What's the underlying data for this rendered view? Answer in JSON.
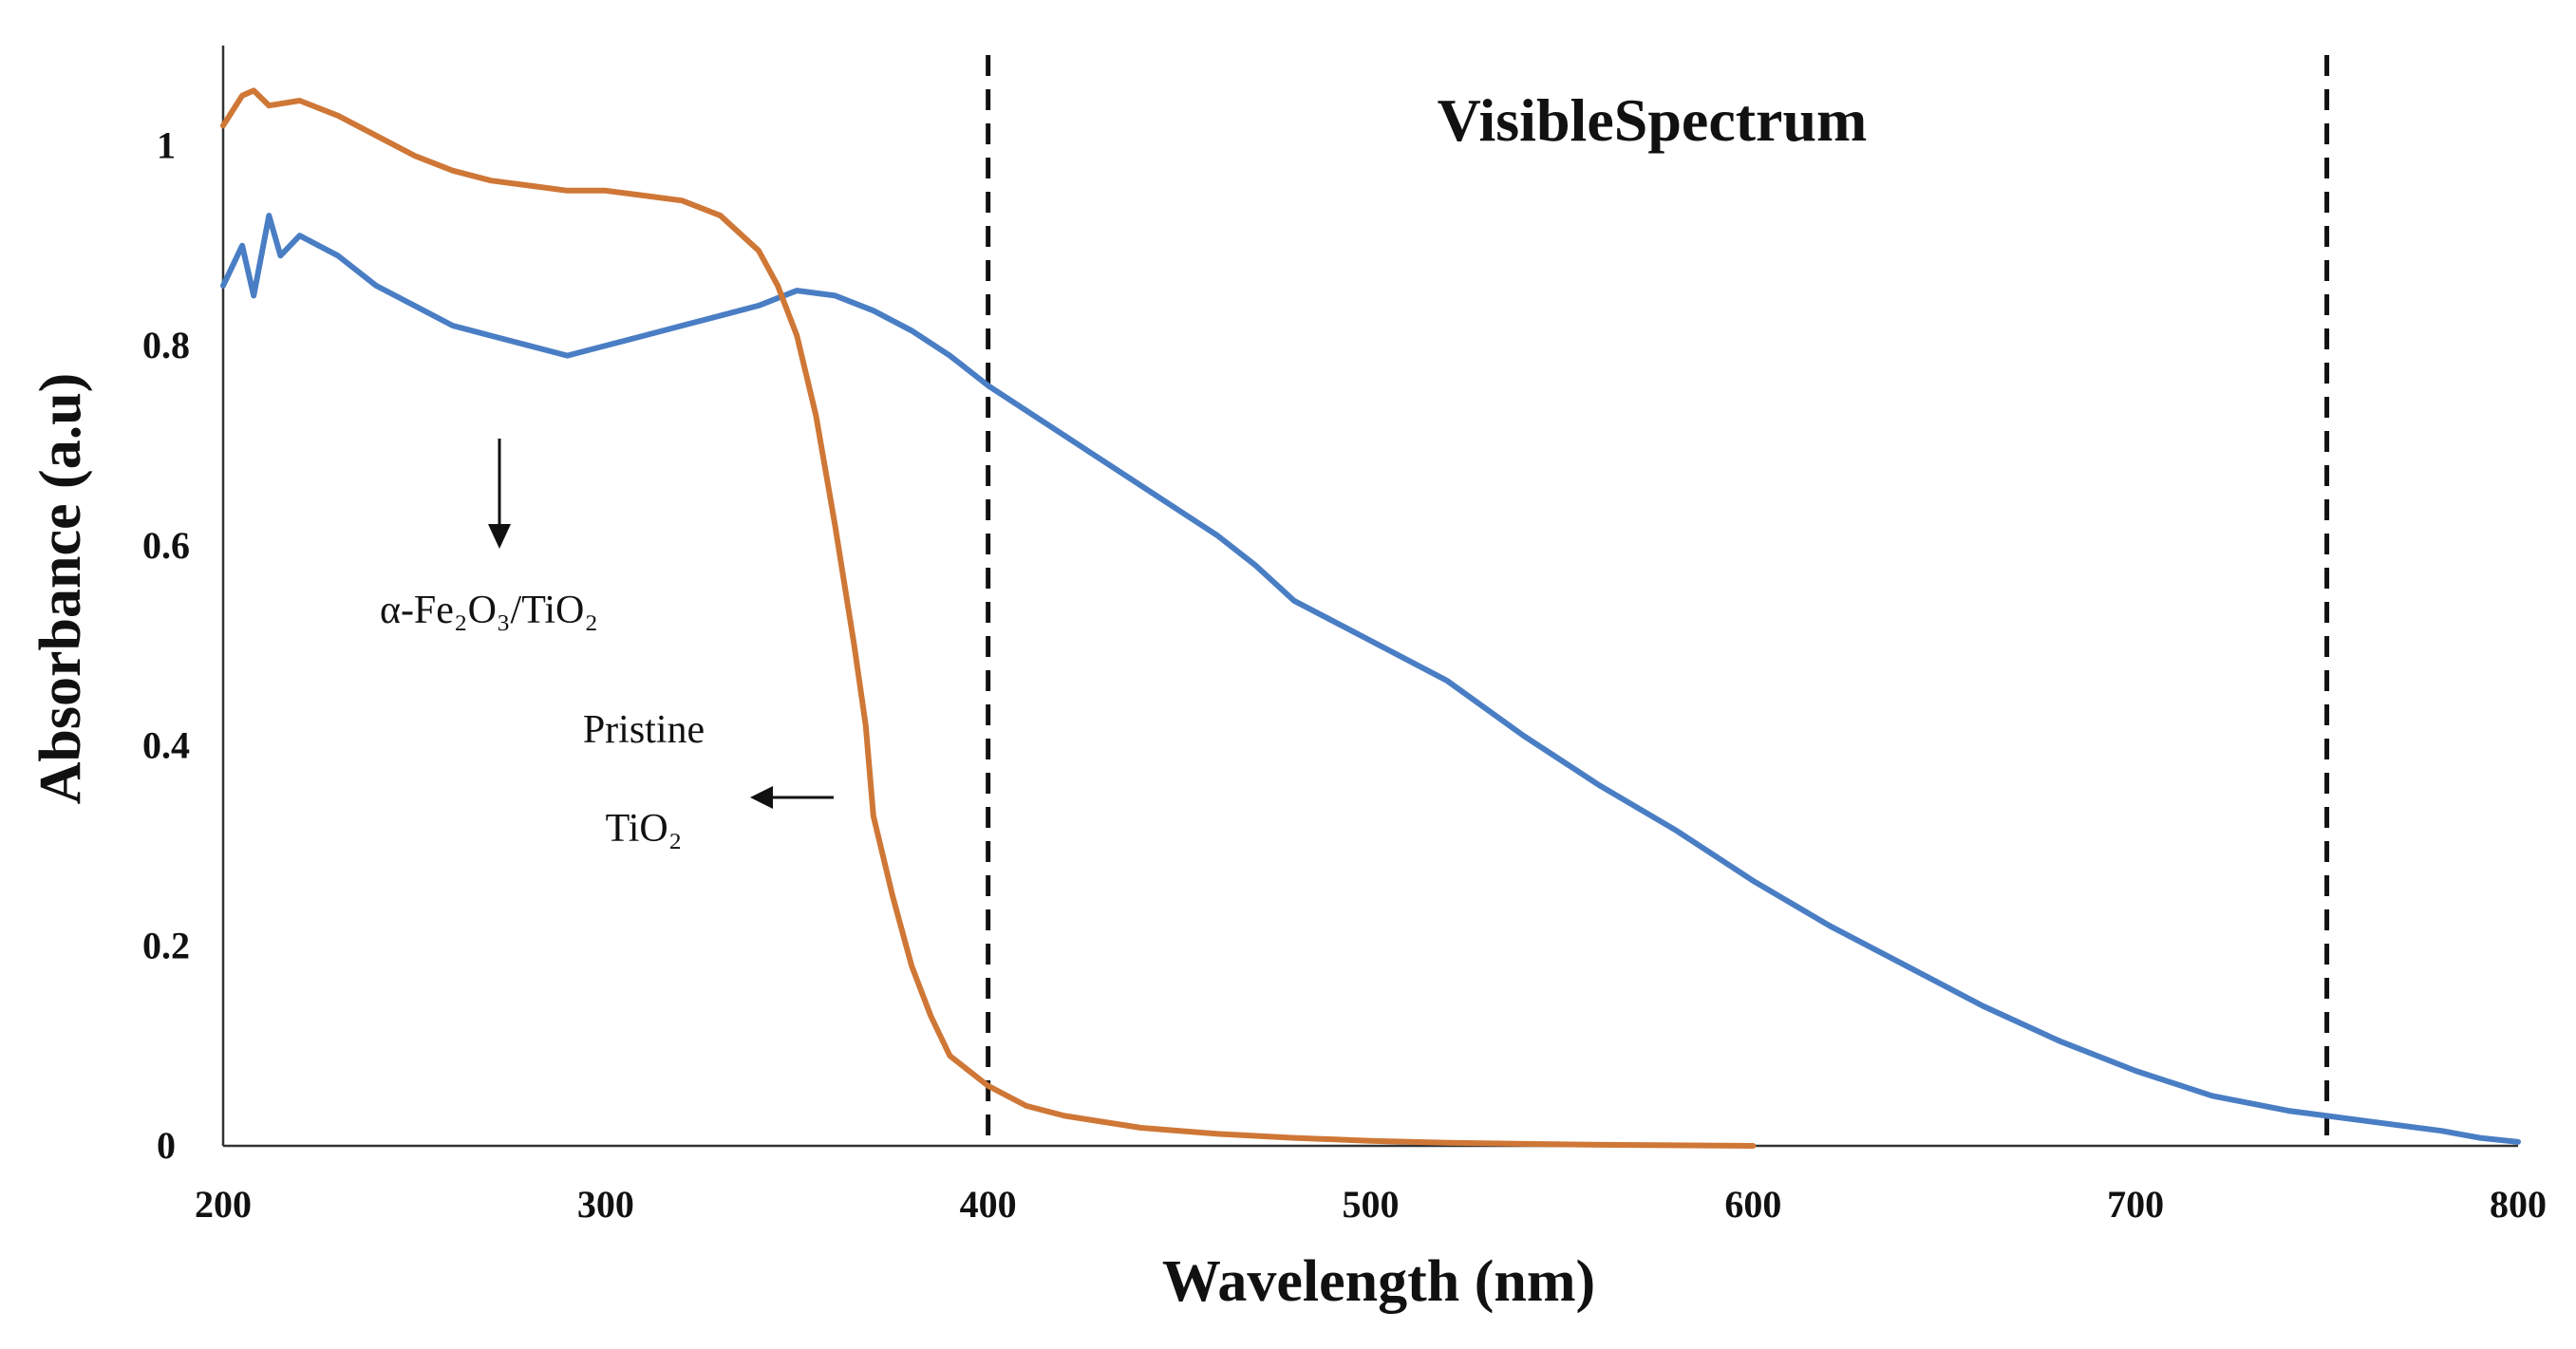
{
  "chart_data": {
    "type": "line",
    "xlabel": "Wavelength (nm)",
    "ylabel": "Absorbance (a.u)",
    "xlim": [
      200,
      800
    ],
    "ylim": [
      0,
      1.1
    ],
    "x_ticks": [
      "200",
      "300",
      "400",
      "500",
      "600",
      "700",
      "800"
    ],
    "y_ticks": [
      "0",
      "0.2",
      "0.4",
      "0.6",
      "0.8",
      "1"
    ],
    "grid": false,
    "annotations": {
      "visible_band_label": "VisibleSpectrum",
      "fe_label": "α-Fe₂O₃/TiO₂",
      "tio2_label_line1": "Pristine",
      "tio2_label_line2": "TiO₂"
    },
    "markers_x": [
      400,
      750
    ],
    "series": [
      {
        "id": "fe2o3_tio2",
        "color": "#4a7ec4",
        "points": [
          [
            200,
            0.86
          ],
          [
            205,
            0.9
          ],
          [
            208,
            0.85
          ],
          [
            212,
            0.93
          ],
          [
            215,
            0.89
          ],
          [
            220,
            0.91
          ],
          [
            230,
            0.89
          ],
          [
            240,
            0.86
          ],
          [
            250,
            0.84
          ],
          [
            260,
            0.82
          ],
          [
            270,
            0.81
          ],
          [
            280,
            0.8
          ],
          [
            290,
            0.79
          ],
          [
            300,
            0.8
          ],
          [
            310,
            0.81
          ],
          [
            320,
            0.82
          ],
          [
            330,
            0.83
          ],
          [
            340,
            0.84
          ],
          [
            350,
            0.855
          ],
          [
            360,
            0.85
          ],
          [
            370,
            0.835
          ],
          [
            380,
            0.815
          ],
          [
            390,
            0.79
          ],
          [
            400,
            0.76
          ],
          [
            420,
            0.71
          ],
          [
            440,
            0.66
          ],
          [
            460,
            0.61
          ],
          [
            470,
            0.58
          ],
          [
            480,
            0.545
          ],
          [
            490,
            0.525
          ],
          [
            500,
            0.505
          ],
          [
            520,
            0.465
          ],
          [
            540,
            0.41
          ],
          [
            560,
            0.36
          ],
          [
            580,
            0.315
          ],
          [
            600,
            0.265
          ],
          [
            620,
            0.22
          ],
          [
            640,
            0.18
          ],
          [
            660,
            0.14
          ],
          [
            680,
            0.105
          ],
          [
            700,
            0.075
          ],
          [
            720,
            0.05
          ],
          [
            740,
            0.035
          ],
          [
            760,
            0.025
          ],
          [
            780,
            0.015
          ],
          [
            790,
            0.008
          ],
          [
            800,
            0.004
          ]
        ]
      },
      {
        "id": "pristine_tio2",
        "color": "#cf7736",
        "points": [
          [
            200,
            1.02
          ],
          [
            205,
            1.05
          ],
          [
            208,
            1.055
          ],
          [
            212,
            1.04
          ],
          [
            220,
            1.045
          ],
          [
            230,
            1.03
          ],
          [
            240,
            1.01
          ],
          [
            250,
            0.99
          ],
          [
            260,
            0.975
          ],
          [
            270,
            0.965
          ],
          [
            280,
            0.96
          ],
          [
            290,
            0.955
          ],
          [
            300,
            0.955
          ],
          [
            310,
            0.95
          ],
          [
            320,
            0.945
          ],
          [
            330,
            0.93
          ],
          [
            340,
            0.895
          ],
          [
            345,
            0.86
          ],
          [
            350,
            0.81
          ],
          [
            355,
            0.73
          ],
          [
            360,
            0.62
          ],
          [
            365,
            0.5
          ],
          [
            368,
            0.42
          ],
          [
            370,
            0.33
          ],
          [
            375,
            0.25
          ],
          [
            380,
            0.18
          ],
          [
            385,
            0.13
          ],
          [
            390,
            0.09
          ],
          [
            400,
            0.06
          ],
          [
            410,
            0.04
          ],
          [
            420,
            0.03
          ],
          [
            440,
            0.018
          ],
          [
            460,
            0.012
          ],
          [
            480,
            0.008
          ],
          [
            500,
            0.005
          ],
          [
            520,
            0.003
          ],
          [
            540,
            0.002
          ],
          [
            560,
            0.001
          ],
          [
            600,
            0.0
          ]
        ]
      }
    ]
  }
}
